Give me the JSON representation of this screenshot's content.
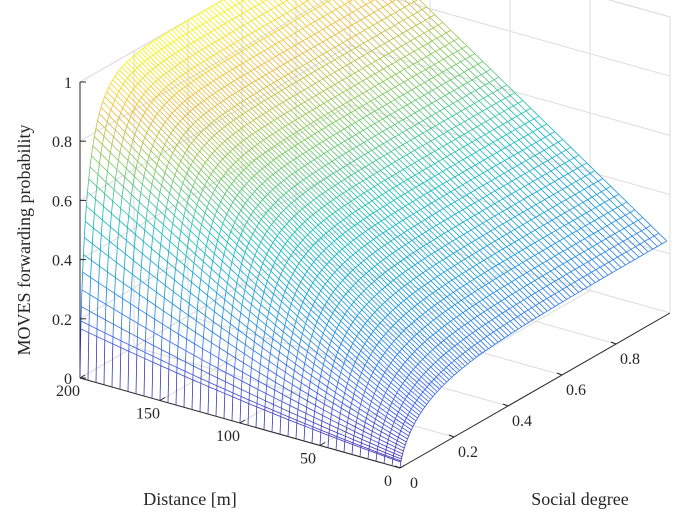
{
  "chart_data": {
    "type": "surface",
    "title": "",
    "xlabel": "Social degree",
    "ylabel": "Distance [m]",
    "zlabel": "MOVES forwarding probability",
    "xlim": [
      0,
      1
    ],
    "ylim": [
      0,
      200
    ],
    "zlim": [
      0,
      1
    ],
    "xticks": [
      0,
      0.2,
      0.4,
      0.6,
      0.8
    ],
    "yticks": [
      0,
      50,
      100,
      150,
      200
    ],
    "zticks": [
      0,
      0.2,
      0.4,
      0.6,
      0.8,
      1
    ],
    "grid": true,
    "colormap": "parula",
    "surface_samples": {
      "note_axes": "z at (social degree x, distance y)",
      "points": [
        {
          "x": 0.0,
          "y": 0,
          "z": 0.0
        },
        {
          "x": 0.0,
          "y": 200,
          "z": 0.0
        },
        {
          "x": 0.02,
          "y": 200,
          "z": 0.4
        },
        {
          "x": 0.1,
          "y": 200,
          "z": 0.72
        },
        {
          "x": 0.3,
          "y": 200,
          "z": 0.92
        },
        {
          "x": 1.0,
          "y": 200,
          "z": 1.0
        },
        {
          "x": 0.02,
          "y": 0,
          "z": 0.1
        },
        {
          "x": 0.2,
          "y": 0,
          "z": 0.2
        },
        {
          "x": 0.5,
          "y": 0,
          "z": 0.24
        },
        {
          "x": 1.0,
          "y": 0,
          "z": 0.25
        }
      ]
    }
  },
  "colors": {
    "low": "#3e26a8",
    "mid": "#12bfb9",
    "high": "#f9fb0e",
    "axis": "#262626",
    "grid": "#dcdcdc"
  }
}
